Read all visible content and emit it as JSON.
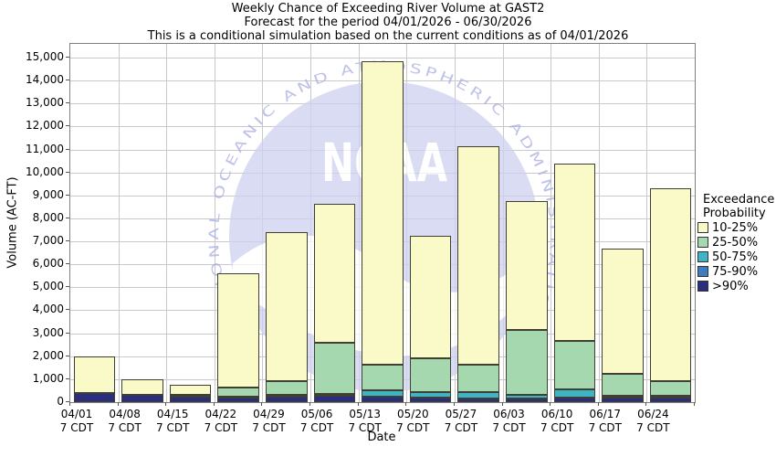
{
  "title": {
    "line1": "Weekly Chance of Exceeding River Volume at GAST2",
    "line2": "Forecast for the period 04/01/2026 - 06/30/2026",
    "line3": "This is a conditional simulation based on the current conditions as of 04/01/2026"
  },
  "y_axis": {
    "label": "Volume (AC-FT)",
    "tick_labels": [
      "0",
      "1,000",
      "2,000",
      "3,000",
      "4,000",
      "5,000",
      "6,000",
      "7,000",
      "8,000",
      "9,000",
      "10,000",
      "11,000",
      "12,000",
      "13,000",
      "14,000",
      "15,000"
    ],
    "tick_values": [
      0,
      1000,
      2000,
      3000,
      4000,
      5000,
      6000,
      7000,
      8000,
      9000,
      10000,
      11000,
      12000,
      13000,
      14000,
      15000
    ]
  },
  "x_axis": {
    "label": "Date",
    "tick_sub": "7 CDT"
  },
  "legend": {
    "title_line1": "Exceedance",
    "title_line2": "Probability",
    "items": [
      {
        "label": "10-25%",
        "color": "#fafac8"
      },
      {
        "label": "25-50%",
        "color": "#a5d8ae"
      },
      {
        "label": "50-75%",
        "color": "#3fb4c4"
      },
      {
        "label": "75-90%",
        "color": "#3d7ec0"
      },
      {
        "label": ">90%",
        "color": "#292f7e"
      }
    ]
  },
  "watermark": {
    "arc_text": "NATIONAL OCEANIC AND ATMOSPHERIC ADMINISTRATION",
    "center_text": "NOAA",
    "circle_color": "#ced1ef",
    "arc_text_color": "#a9ade0"
  },
  "chart_data": {
    "type": "bar",
    "stacked": true,
    "title": "Weekly Chance of Exceeding River Volume at GAST2",
    "xlabel": "Date",
    "ylabel": "Volume (AC-FT)",
    "ylim": [
      0,
      15600
    ],
    "grid": true,
    "legend_position": "right",
    "categories": [
      "04/01",
      "04/08",
      "04/15",
      "04/22",
      "04/29",
      "05/06",
      "05/13",
      "05/20",
      "05/27",
      "06/03",
      "06/10",
      "06/17",
      "06/24"
    ],
    "series": [
      {
        "name": ">90%",
        "color": "#292f7e",
        "values": [
          380,
          300,
          230,
          210,
          250,
          280,
          240,
          200,
          170,
          150,
          210,
          190,
          200
        ]
      },
      {
        "name": "75-90%",
        "color": "#3d7ec0",
        "values": [
          0,
          0,
          0,
          0,
          0,
          0,
          0,
          0,
          0,
          0,
          0,
          0,
          0
        ]
      },
      {
        "name": "50-75%",
        "color": "#3fb4c4",
        "values": [
          0,
          0,
          20,
          20,
          70,
          80,
          290,
          225,
          255,
          180,
          340,
          75,
          65
        ]
      },
      {
        "name": "25-50%",
        "color": "#a5d8ae",
        "values": [
          0,
          0,
          80,
          420,
          580,
          2240,
          1120,
          1475,
          1225,
          2820,
          2100,
          955,
          665
        ]
      },
      {
        "name": "10-25%",
        "color": "#fafac8",
        "values": [
          1620,
          700,
          420,
          4950,
          6500,
          6050,
          13200,
          5350,
          9500,
          5600,
          7750,
          5480,
          8370
        ]
      }
    ],
    "totals": [
      2000,
      1000,
      750,
      5600,
      7400,
      8650,
      14850,
      7250,
      11150,
      8750,
      10400,
      6700,
      9300
    ]
  }
}
